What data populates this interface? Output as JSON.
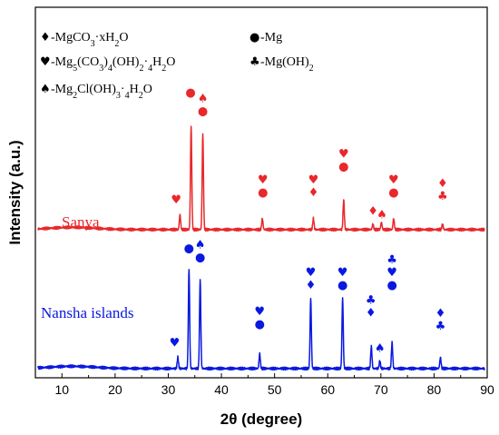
{
  "chart_data": {
    "type": "line",
    "xlabel": "2θ (degree)",
    "ylabel": "Intensity (a.u.)",
    "xlim": [
      5,
      90
    ],
    "x_ticks": [
      10,
      20,
      30,
      40,
      50,
      60,
      70,
      80,
      90
    ],
    "y_ticks_shown": false,
    "legend": {
      "placement": "top",
      "entries": [
        {
          "symbol": "♦",
          "label": "-MgCO3·xH2O"
        },
        {
          "symbol": "●",
          "label": "-Mg"
        },
        {
          "symbol": "♥",
          "label": "-Mg5(CO3)4(OH)2·4H2O"
        },
        {
          "symbol": "♣",
          "label": "-Mg(OH)2"
        },
        {
          "symbol": "♠",
          "label": "-Mg2Cl(OH)3·4H2O"
        }
      ]
    },
    "series": [
      {
        "name": "Sanya",
        "color": "#e8282b",
        "baseline": 0.4,
        "peaks": [
          {
            "x": 32.2,
            "h": 0.04
          },
          {
            "x": 34.3,
            "h": 0.28
          },
          {
            "x": 36.5,
            "h": 0.26
          },
          {
            "x": 47.7,
            "h": 0.03
          },
          {
            "x": 57.3,
            "h": 0.03
          },
          {
            "x": 63.0,
            "h": 0.08
          },
          {
            "x": 68.5,
            "h": 0.015
          },
          {
            "x": 70.1,
            "h": 0.02
          },
          {
            "x": 72.4,
            "h": 0.03
          },
          {
            "x": 81.6,
            "h": 0.015
          }
        ],
        "markers": [
          {
            "x": 31.5,
            "y": 0.47,
            "symbols": [
              "♥"
            ]
          },
          {
            "x": 34.2,
            "y": 0.76,
            "symbols": [
              "●"
            ]
          },
          {
            "x": 36.5,
            "y": 0.71,
            "symbols": [
              "♠",
              "●"
            ]
          },
          {
            "x": 47.8,
            "y": 0.49,
            "symbols": [
              "♥",
              "●"
            ]
          },
          {
            "x": 57.3,
            "y": 0.49,
            "symbols": [
              "♥",
              "♦"
            ]
          },
          {
            "x": 63.0,
            "y": 0.56,
            "symbols": [
              "♥",
              "●"
            ]
          },
          {
            "x": 68.5,
            "y": 0.44,
            "symbols": [
              "♦"
            ]
          },
          {
            "x": 70.2,
            "y": 0.43,
            "symbols": [
              "♠"
            ]
          },
          {
            "x": 72.4,
            "y": 0.49,
            "symbols": [
              "♥",
              "●"
            ]
          },
          {
            "x": 81.6,
            "y": 0.48,
            "symbols": [
              "♦",
              "♣"
            ]
          }
        ]
      },
      {
        "name": "Nansha islands",
        "color": "#0a18e0",
        "baseline": 0.025,
        "peaks": [
          {
            "x": 31.8,
            "h": 0.03
          },
          {
            "x": 33.9,
            "h": 0.27
          },
          {
            "x": 36.0,
            "h": 0.24
          },
          {
            "x": 47.2,
            "h": 0.04
          },
          {
            "x": 56.8,
            "h": 0.19
          },
          {
            "x": 62.8,
            "h": 0.19
          },
          {
            "x": 68.2,
            "h": 0.06
          },
          {
            "x": 69.8,
            "h": 0.02
          },
          {
            "x": 72.1,
            "h": 0.07
          },
          {
            "x": 81.2,
            "h": 0.03
          }
        ],
        "markers": [
          {
            "x": 31.2,
            "y": 0.085,
            "symbols": [
              "♥"
            ]
          },
          {
            "x": 33.9,
            "y": 0.34,
            "symbols": [
              "●"
            ]
          },
          {
            "x": 36.0,
            "y": 0.315,
            "symbols": [
              "♠",
              "●"
            ]
          },
          {
            "x": 47.2,
            "y": 0.135,
            "symbols": [
              "♥",
              "●"
            ]
          },
          {
            "x": 56.8,
            "y": 0.24,
            "symbols": [
              "♥",
              "♦"
            ]
          },
          {
            "x": 62.8,
            "y": 0.24,
            "symbols": [
              "♥",
              "●"
            ]
          },
          {
            "x": 68.1,
            "y": 0.165,
            "symbols": [
              "♣",
              "♦"
            ]
          },
          {
            "x": 69.8,
            "y": 0.07,
            "symbols": [
              "♠"
            ]
          },
          {
            "x": 72.1,
            "y": 0.24,
            "symbols": [
              "♣",
              "♥",
              "●"
            ]
          },
          {
            "x": 81.2,
            "y": 0.13,
            "symbols": [
              "♦",
              "♣"
            ]
          }
        ]
      }
    ]
  }
}
